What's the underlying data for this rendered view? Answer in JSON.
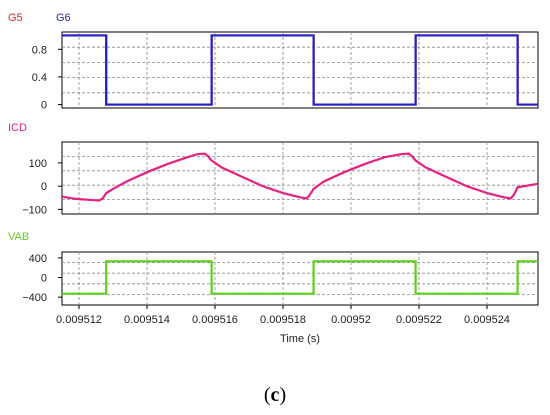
{
  "colors": {
    "red": "#ee2222",
    "blue": "#2222cc",
    "pink": "#e8207f",
    "green": "#5ecf1e"
  },
  "figure_label": {
    "open": "(",
    "letter": "c",
    "close": ")"
  },
  "chart_data": [
    {
      "type": "line",
      "legend": [
        "G5",
        "G6"
      ],
      "ylim": [
        -0.05,
        1.05
      ],
      "yticks": [
        {
          "value": 0.8,
          "label": "0.8"
        },
        {
          "value": 0.4,
          "label": "0.4"
        },
        {
          "value": 0,
          "label": "0"
        }
      ],
      "xlim": [
        0.0095115,
        0.0095255
      ],
      "series": [
        {
          "name": "G5",
          "color": "#ee2222",
          "x": [
            0.0095115,
            0.0095128,
            0.0095128,
            0.0095159,
            0.0095159,
            0.0095189,
            0.0095189,
            0.0095219,
            0.0095219,
            0.0095249,
            0.0095249,
            0.0095255
          ],
          "y": [
            1,
            1,
            0,
            0,
            1,
            1,
            0,
            0,
            1,
            1,
            0,
            0
          ]
        },
        {
          "name": "G6",
          "color": "#2222cc",
          "x": [
            0.0095115,
            0.0095128,
            0.0095128,
            0.0095159,
            0.0095159,
            0.0095189,
            0.0095189,
            0.0095219,
            0.0095219,
            0.0095249,
            0.0095249,
            0.0095255
          ],
          "y": [
            1,
            1,
            0,
            0,
            1,
            1,
            0,
            0,
            1,
            1,
            0,
            0
          ]
        }
      ]
    },
    {
      "type": "line",
      "legend": [
        "ICD"
      ],
      "ylim": [
        -120,
        190
      ],
      "yticks": [
        {
          "value": 100,
          "label": "100"
        },
        {
          "value": 0,
          "label": "0"
        },
        {
          "value": -100,
          "label": "−100"
        }
      ],
      "xlim": [
        0.0095115,
        0.0095255
      ],
      "series": [
        {
          "name": "ICD",
          "color": "#e8207f",
          "x": [
            0.0095115,
            0.0095119,
            0.0095124,
            0.0095126,
            0.0095127,
            0.0095128,
            0.009513,
            0.0095134,
            0.009514,
            0.0095146,
            0.0095152,
            0.0095155,
            0.0095157,
            0.0095158,
            0.0095159,
            0.0095162,
            0.0095168,
            0.0095174,
            0.009518,
            0.0095185,
            0.0095187,
            0.0095188,
            0.0095189,
            0.0095192,
            0.0095198,
            0.0095204,
            0.009521,
            0.0095215,
            0.0095217,
            0.0095218,
            0.0095219,
            0.0095222,
            0.0095228,
            0.0095234,
            0.009524,
            0.0095245,
            0.0095247,
            0.0095248,
            0.0095249,
            0.0095251,
            0.0095253,
            0.0095255
          ],
          "y": [
            -45,
            -55,
            -60,
            -62,
            -52,
            -30,
            -12,
            20,
            60,
            95,
            125,
            138,
            140,
            128,
            110,
            80,
            40,
            0,
            -30,
            -48,
            -53,
            -35,
            -12,
            20,
            60,
            95,
            125,
            138,
            140,
            128,
            110,
            80,
            40,
            0,
            -30,
            -48,
            -53,
            -35,
            -5,
            0,
            5,
            10
          ]
        }
      ]
    },
    {
      "type": "line",
      "legend": [
        "VAB"
      ],
      "ylim": [
        -560,
        520
      ],
      "yticks": [
        {
          "value": 400,
          "label": "400"
        },
        {
          "value": 0,
          "label": "0"
        },
        {
          "value": -400,
          "label": "−400"
        }
      ],
      "xlim": [
        0.0095115,
        0.0095255
      ],
      "xticks": [
        {
          "value": 0.009512,
          "label": "0.009512"
        },
        {
          "value": 0.009514,
          "label": "0.009514"
        },
        {
          "value": 0.009516,
          "label": "0.009516"
        },
        {
          "value": 0.009518,
          "label": "0.009518"
        },
        {
          "value": 0.00952,
          "label": "0.00952"
        },
        {
          "value": 0.009522,
          "label": "0.009522"
        },
        {
          "value": 0.009524,
          "label": "0.009524"
        }
      ],
      "xlabel": "Time (s)",
      "series": [
        {
          "name": "VAB",
          "color": "#5ecf1e",
          "x": [
            0.0095115,
            0.0095128,
            0.0095128,
            0.0095159,
            0.0095159,
            0.009516,
            0.009516,
            0.0095189,
            0.0095189,
            0.0095219,
            0.0095219,
            0.0095249,
            0.0095249,
            0.0095255
          ],
          "y": [
            -330,
            -330,
            330,
            330,
            -330,
            -330,
            -330,
            -330,
            330,
            330,
            -330,
            -330,
            330,
            330
          ]
        }
      ]
    }
  ]
}
